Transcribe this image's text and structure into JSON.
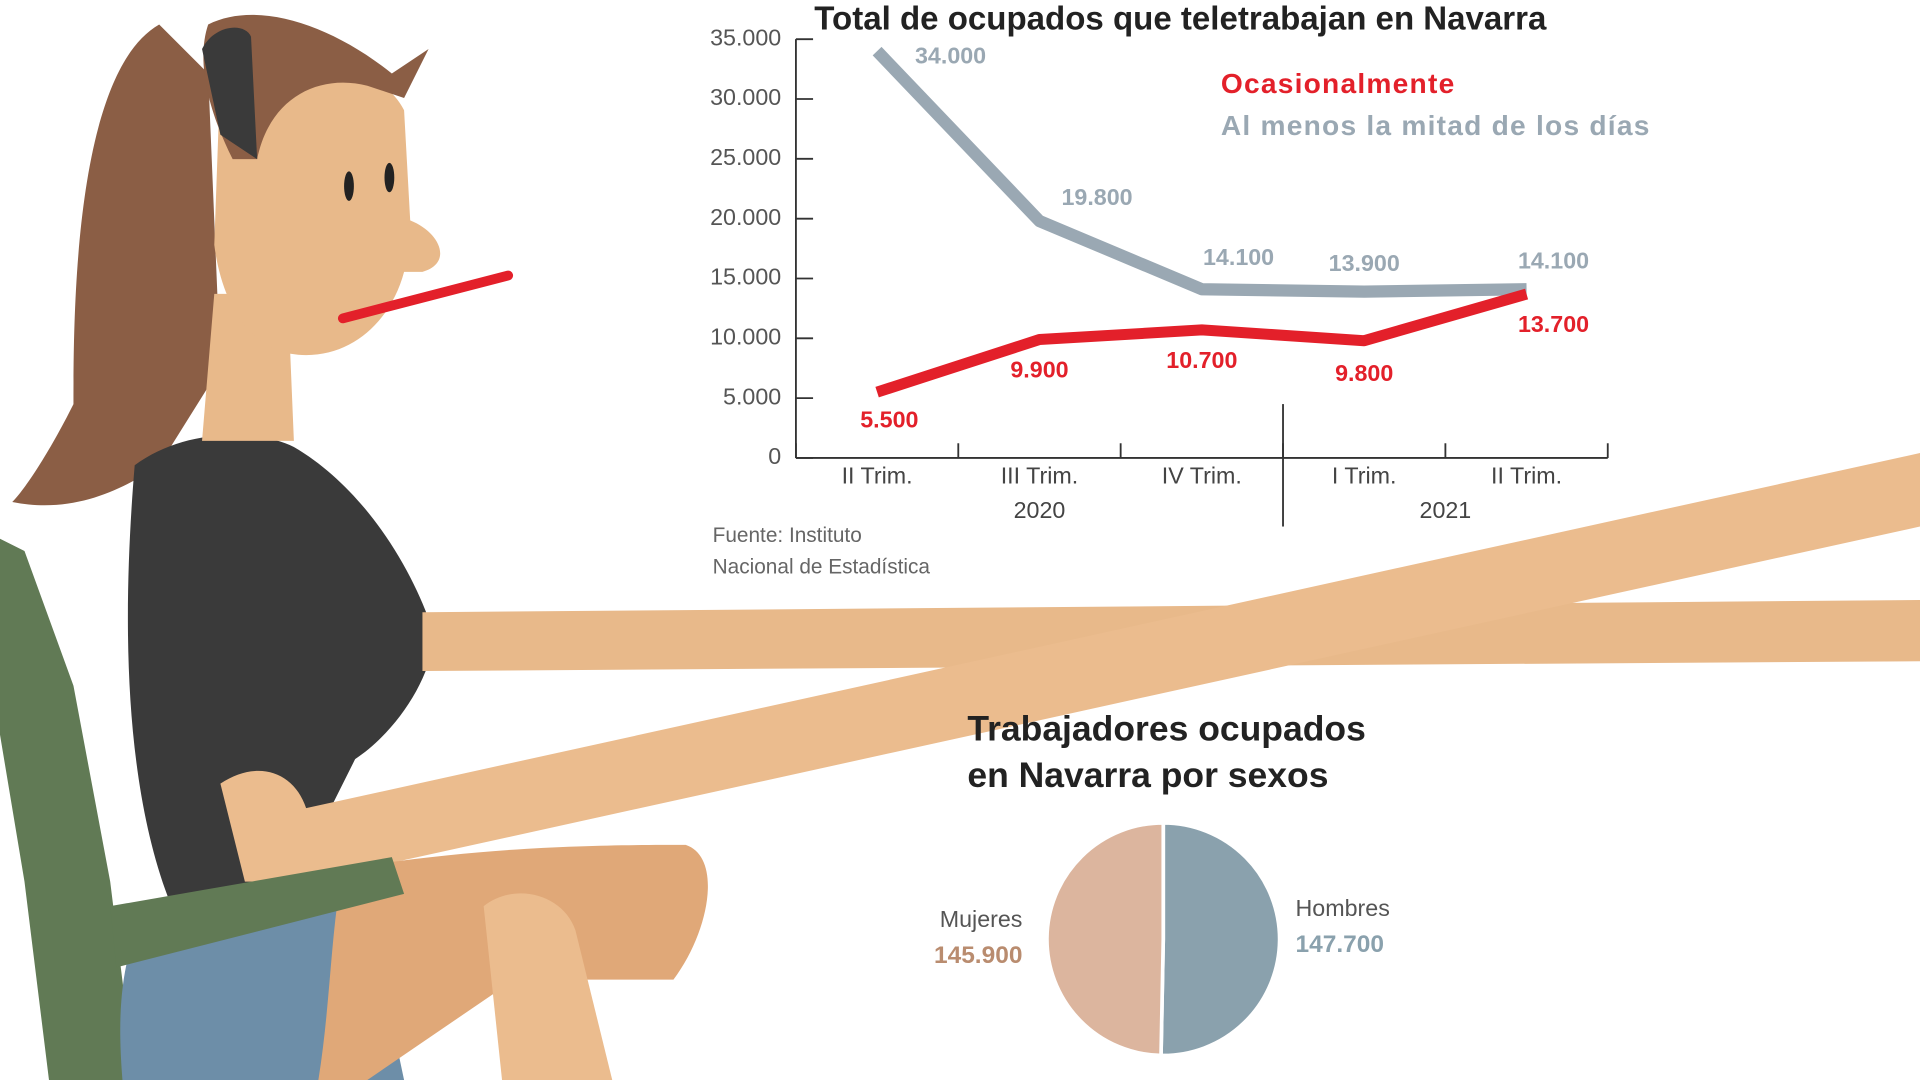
{
  "chart_data": [
    {
      "type": "line",
      "title": "Total de ocupados que teletrabajan en Navarra",
      "categories": [
        "II Trim.",
        "III Trim.",
        "IV Trim.",
        "I Trim.",
        "II Trim."
      ],
      "category_groups": [
        "2020",
        "2021"
      ],
      "series": [
        {
          "name": "Ocasionalmente",
          "color": "#e3202a",
          "values": [
            5500,
            9900,
            10700,
            9800,
            13700
          ],
          "value_labels": [
            "5.500",
            "9.900",
            "10.700",
            "9.800",
            "13.700"
          ]
        },
        {
          "name": "Al menos la mitad de los días",
          "color": "#9aa8b3",
          "values": [
            34000,
            19800,
            14100,
            13900,
            14100
          ],
          "value_labels": [
            "34.000",
            "19.800",
            "14.100",
            "13.900",
            "14.100"
          ]
        }
      ],
      "ylim": [
        0,
        35000
      ],
      "yticks": [
        0,
        {
          "value": 5000,
          "label": "5.000"
        },
        {
          "value": 10000,
          "label": "10.000"
        },
        {
          "value": 15000,
          "label": "15.000"
        },
        {
          "value": 20000,
          "label": "20.000"
        },
        {
          "value": 25000,
          "label": "25.000"
        },
        {
          "value": 30000,
          "label": "30.000"
        },
        {
          "value": 35000,
          "label": "35.000"
        }
      ],
      "source": [
        "Fuente: Instituto",
        "Nacional de Estadística"
      ]
    },
    {
      "type": "pie",
      "title": [
        "Trabajadores ocupados",
        "en Navarra por sexos"
      ],
      "categories": [
        "Mujeres",
        "Hombres"
      ],
      "values": [
        145900,
        147700
      ],
      "value_labels": [
        "145.900",
        "147.700"
      ],
      "colors": [
        "#dcb59e",
        "#8aa1ad"
      ],
      "label_colors": [
        "#b98c6f",
        "#8aa1ad"
      ]
    }
  ]
}
